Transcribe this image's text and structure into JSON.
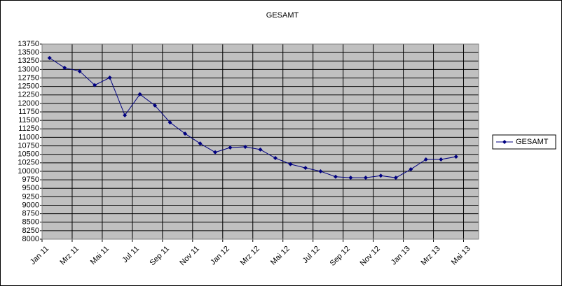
{
  "chart_data": {
    "type": "line",
    "title": "GESAMT",
    "categories": [
      "Jan 11",
      null,
      "Mrz 11",
      null,
      "Mai 11",
      null,
      "Jul 11",
      null,
      "Sep 11",
      null,
      "Nov 11",
      null,
      "Jan 12",
      null,
      "Mrz 12",
      null,
      "Mai 12",
      null,
      "Jul 12",
      null,
      "Sep 12",
      null,
      "Nov 12",
      null,
      "Jan 13",
      null,
      "Mrz 13",
      null,
      "Mai 13"
    ],
    "series": [
      {
        "name": "GESAMT",
        "color": "#000080",
        "values": [
          13340,
          13050,
          12950,
          12540,
          12760,
          11650,
          12270,
          11940,
          11440,
          11110,
          10820,
          10560,
          10700,
          10720,
          10640,
          10390,
          10210,
          10100,
          10000,
          9840,
          9810,
          9810,
          9870,
          9810,
          10060,
          10350,
          10350,
          10430,
          null
        ]
      }
    ],
    "ylim": [
      8000,
      13750
    ],
    "yticks": [
      8000,
      8250,
      8500,
      8750,
      9000,
      9250,
      9500,
      9750,
      10000,
      10250,
      10500,
      10750,
      11000,
      11250,
      11500,
      11750,
      12000,
      12250,
      12500,
      12750,
      13000,
      13250,
      13500,
      13750
    ],
    "grid": true,
    "plot_background": "#c0c0c0",
    "legend": "right"
  }
}
